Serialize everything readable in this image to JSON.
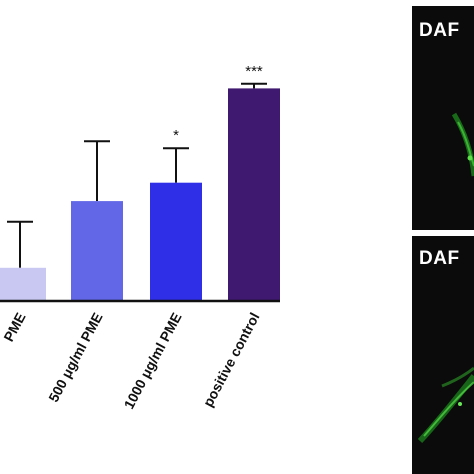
{
  "chart_data": {
    "type": "bar",
    "title": "",
    "xlabel": "",
    "ylabel": "",
    "ylim": [
      0,
      100
    ],
    "categories": [
      "PME",
      "500 μg/ml PME",
      "1000 μg/ml PME",
      "positive control"
    ],
    "values": [
      14,
      43,
      51,
      92
    ],
    "errors": [
      20,
      26,
      15,
      2
    ],
    "significance": [
      "",
      "",
      "*",
      "***"
    ],
    "colors": [
      "#c9c8f2",
      "#6167e6",
      "#2f2fe8",
      "#3f1870"
    ]
  },
  "panels": [
    {
      "label": "DAF"
    },
    {
      "label": "DAF"
    }
  ]
}
